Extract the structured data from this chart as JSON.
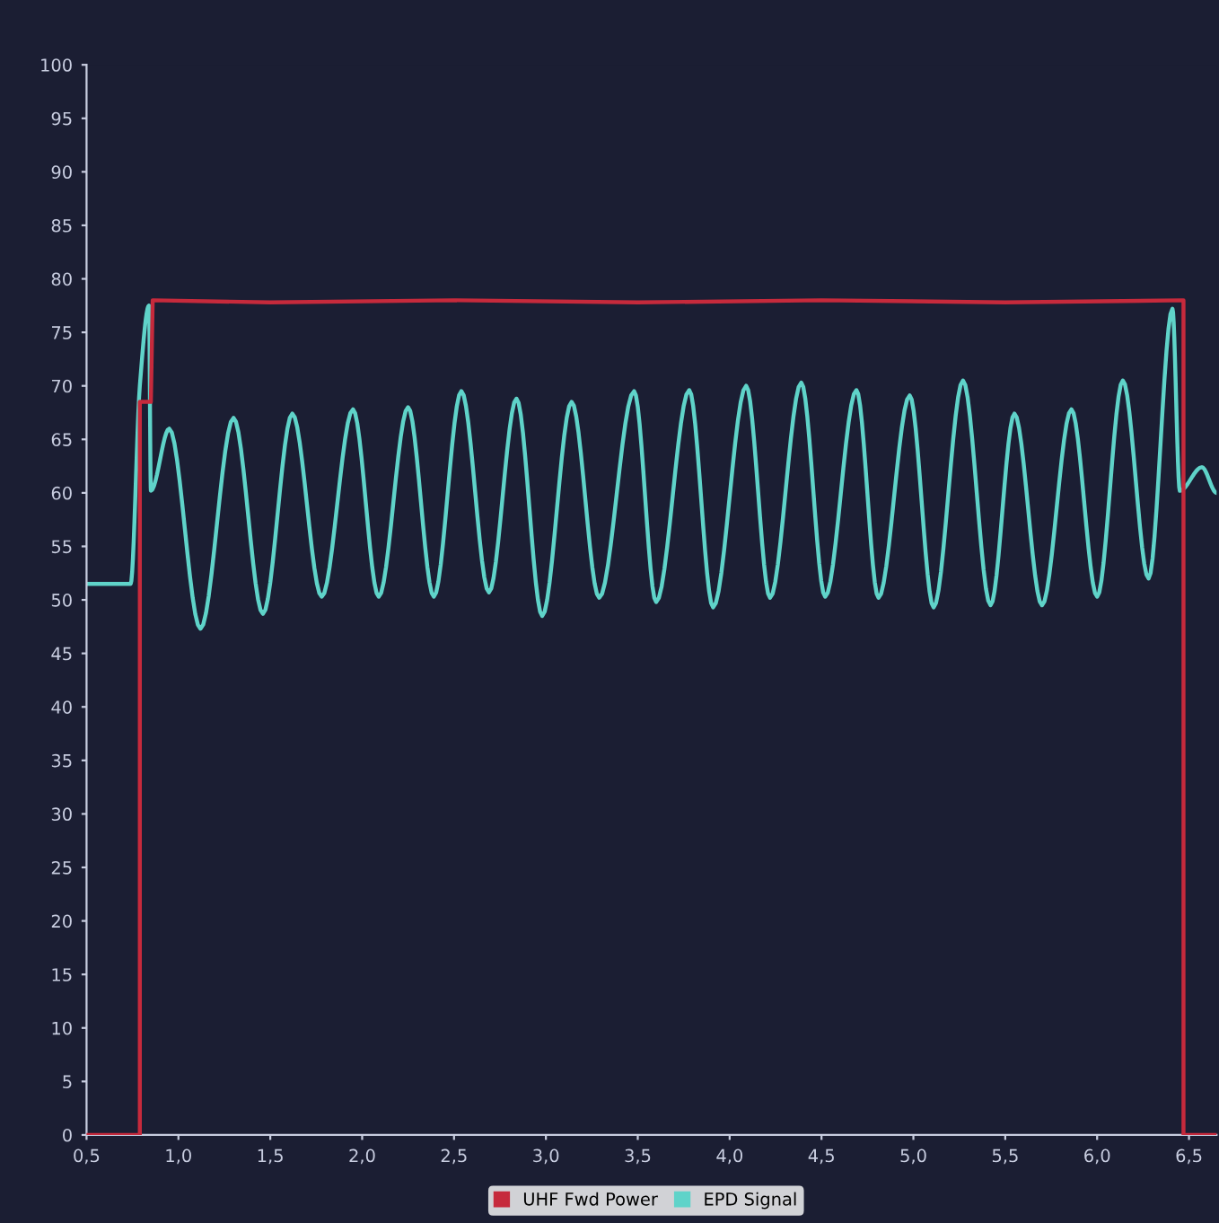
{
  "chart_data": {
    "type": "line",
    "series": [
      {
        "name": "UHF Fwd Power",
        "color": "#c62a3c",
        "x": [
          0.5,
          0.79,
          0.79,
          0.85,
          0.86,
          1.5,
          2.5,
          3.5,
          4.5,
          5.5,
          6.47,
          6.47,
          6.65
        ],
        "values": [
          0,
          0,
          68.5,
          68.5,
          78,
          77.8,
          78,
          77.8,
          78,
          77.8,
          78,
          0,
          0
        ]
      },
      {
        "name": "EPD Signal",
        "color": "#5fd3c9",
        "x": [
          0.5,
          0.74,
          0.79,
          0.84,
          0.85,
          0.95,
          1.12,
          1.3,
          1.46,
          1.62,
          1.78,
          1.95,
          2.09,
          2.25,
          2.39,
          2.54,
          2.69,
          2.84,
          2.98,
          3.14,
          3.29,
          3.48,
          3.6,
          3.78,
          3.91,
          4.09,
          4.22,
          4.39,
          4.52,
          4.69,
          4.81,
          4.98,
          5.11,
          5.27,
          5.42,
          5.55,
          5.7,
          5.86,
          6.0,
          6.14,
          6.28,
          6.41,
          6.45,
          6.57,
          6.65
        ],
        "values": [
          51.5,
          51.5,
          70,
          77.5,
          60.2,
          66,
          47.3,
          67,
          48.7,
          67.4,
          50.3,
          67.8,
          50.3,
          68,
          50.3,
          69.5,
          50.7,
          68.8,
          48.5,
          68.5,
          50.2,
          69.5,
          49.8,
          69.6,
          49.3,
          70,
          50.2,
          70.3,
          50.3,
          69.6,
          50.2,
          69.1,
          49.3,
          70.5,
          49.5,
          67.4,
          49.5,
          67.8,
          50.3,
          70.5,
          52,
          77.2,
          60.2,
          62.4,
          60
        ]
      }
    ],
    "xlim": [
      0.5,
      6.65
    ],
    "xticks": [
      {
        "value": 0.5,
        "label": "0,5"
      },
      {
        "value": 1.0,
        "label": "1,0"
      },
      {
        "value": 1.5,
        "label": "1,5"
      },
      {
        "value": 2.0,
        "label": "2,0"
      },
      {
        "value": 2.5,
        "label": "2,5"
      },
      {
        "value": 3.0,
        "label": "3,0"
      },
      {
        "value": 3.5,
        "label": "3,5"
      },
      {
        "value": 4.0,
        "label": "4,0"
      },
      {
        "value": 4.5,
        "label": "4,5"
      },
      {
        "value": 5.0,
        "label": "5,0"
      },
      {
        "value": 5.5,
        "label": "5,5"
      },
      {
        "value": 6.0,
        "label": "6,0"
      },
      {
        "value": 6.5,
        "label": "6,5"
      }
    ],
    "ylim": [
      0,
      100
    ],
    "yticks": [
      0,
      5,
      10,
      15,
      20,
      25,
      30,
      35,
      40,
      45,
      50,
      55,
      60,
      65,
      70,
      75,
      80,
      85,
      90,
      95,
      100
    ],
    "grid": false,
    "legend": "bottom",
    "marker": "none",
    "line_style": "solid"
  }
}
